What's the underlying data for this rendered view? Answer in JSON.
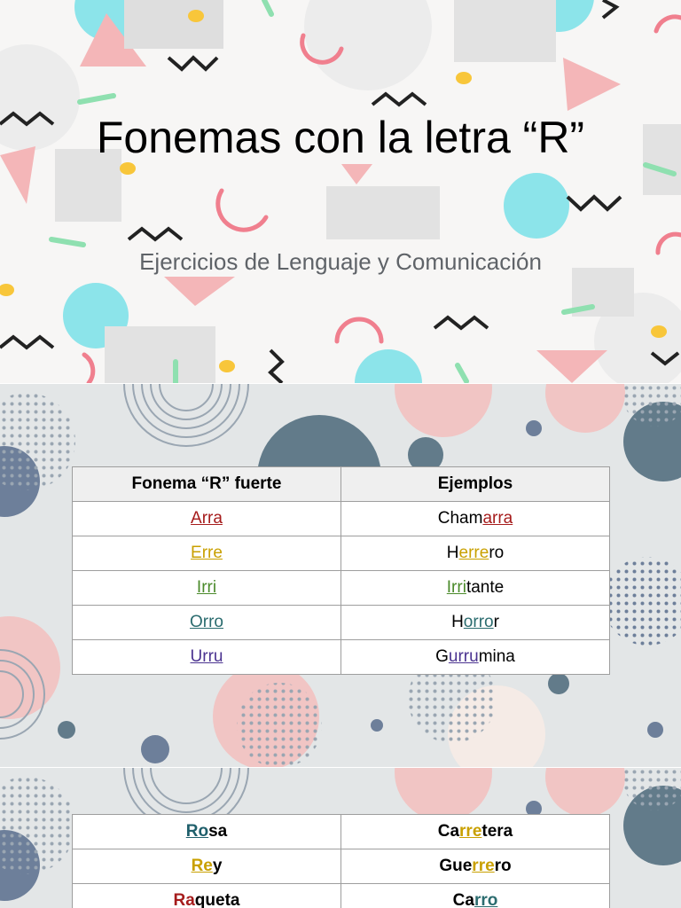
{
  "slide1": {
    "title": "Fonemas con la letra “R”",
    "subtitle": "Ejercicios de Lenguaje y Comunicación"
  },
  "table1": {
    "headers": [
      "Fonema “R” fuerte",
      "Ejemplos"
    ],
    "rows": [
      {
        "phoneme": "Arra",
        "color": "#a61c1c",
        "example": [
          {
            "t": "Cham",
            "hl": false
          },
          {
            "t": "arra",
            "hl": true
          }
        ]
      },
      {
        "phoneme": "Erre",
        "color": "#c9a000",
        "example": [
          {
            "t": "H",
            "hl": false
          },
          {
            "t": "erre",
            "hl": true
          },
          {
            "t": "ro",
            "hl": false
          }
        ]
      },
      {
        "phoneme": "Irri",
        "color": "#4a8a2a",
        "example": [
          {
            "t": "Irri",
            "hl": true
          },
          {
            "t": "tante",
            "hl": false
          }
        ]
      },
      {
        "phoneme": "Orro",
        "color": "#2b6c6f",
        "example": [
          {
            "t": "H",
            "hl": false
          },
          {
            "t": "orro",
            "hl": true
          },
          {
            "t": "r",
            "hl": false
          }
        ]
      },
      {
        "phoneme": "Urru",
        "color": "#4b3390",
        "example": [
          {
            "t": "G",
            "hl": false
          },
          {
            "t": "urru",
            "hl": true
          },
          {
            "t": "mina",
            "hl": false
          }
        ]
      }
    ]
  },
  "table2": {
    "rows": [
      [
        {
          "segments": [
            {
              "t": "Ro",
              "hl": true,
              "color": "#1f5f6b"
            },
            {
              "t": "sa",
              "hl": false
            }
          ]
        },
        {
          "segments": [
            {
              "t": "Ca",
              "hl": false
            },
            {
              "t": "rre",
              "hl": true,
              "color": "#c9a000"
            },
            {
              "t": "tera",
              "hl": false
            }
          ]
        }
      ],
      [
        {
          "segments": [
            {
              "t": "Re",
              "hl": true,
              "color": "#c9a000"
            },
            {
              "t": "y",
              "hl": false
            }
          ]
        },
        {
          "segments": [
            {
              "t": "Gue",
              "hl": false
            },
            {
              "t": "rre",
              "hl": true,
              "color": "#c9a000"
            },
            {
              "t": "ro",
              "hl": false
            }
          ]
        }
      ],
      [
        {
          "segments": [
            {
              "t": "Ra",
              "hl": false,
              "color": "#a61c1c"
            },
            {
              "t": "queta",
              "hl": false
            }
          ]
        },
        {
          "segments": [
            {
              "t": "Ca",
              "hl": false
            },
            {
              "t": "rro",
              "hl": true,
              "color": "#2b6c6f"
            }
          ]
        }
      ]
    ]
  },
  "colors": {
    "pink": "#f4b6b8",
    "cyan": "#8ce4ea",
    "yellow": "#f8c63a",
    "green": "#8fe0b0",
    "dark": "#222222",
    "slate": "#627b8a",
    "navy": "#6d7f9a"
  }
}
